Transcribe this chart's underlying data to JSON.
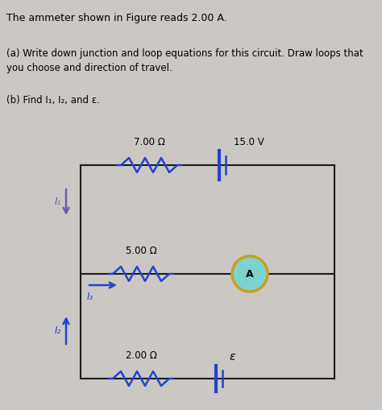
{
  "title_text": "The ammeter shown in Figure reads 2.00 A.",
  "part_a_line1": "(a) Write down junction and loop equations for this circuit. Draw loops that",
  "part_a_line2": "you choose and direction of travel.",
  "part_b": "(b) Find I₁, I₂, and ε.",
  "bg_color": "#cbc8c4",
  "wire_color": "#1a1a1a",
  "resistor_color": "#2244cc",
  "battery_color": "#2244cc",
  "ammeter_fill": "#7dd4cc",
  "ammeter_ring": "#c8a020",
  "i1_color": "#7755aa",
  "i2_color": "#2244cc",
  "i3_color": "#2244cc",
  "label_7ohm": "7.00 Ω",
  "label_5ohm": "5.00 Ω",
  "label_2ohm": "2.00 Ω",
  "label_15V": "15.0 V",
  "label_eps": "ε",
  "label_I1": "I₁",
  "label_I2": "I₂",
  "label_I3": "I₃",
  "label_A": "A"
}
